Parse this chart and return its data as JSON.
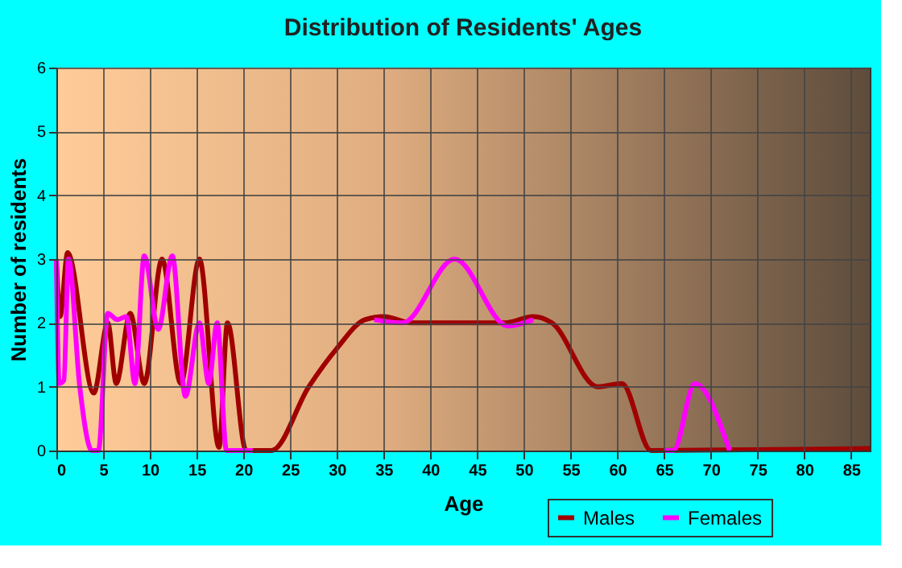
{
  "chart_data": {
    "type": "line",
    "title": "Distribution of Residents' Ages",
    "xlabel": "Age",
    "ylabel": "Number of residents",
    "xlim": [
      0,
      87
    ],
    "xticks": [
      0,
      5,
      10,
      15,
      20,
      25,
      30,
      35,
      40,
      45,
      50,
      55,
      60,
      65,
      70,
      75,
      80,
      85
    ],
    "ylim": [
      0,
      6
    ],
    "yticks": [
      0,
      1,
      2,
      3,
      4,
      5,
      6
    ],
    "grid": true,
    "legend": "bottom right",
    "marker": "none",
    "line_style": "solid",
    "series": [
      {
        "name": "Males",
        "color": "#a00000",
        "x": [
          0,
          0.4,
          1.2,
          4,
          5.5,
          6.4,
          7.9,
          9.4,
          11.3,
          13.3,
          15.3,
          17.4,
          18.3,
          20.3,
          23,
          27,
          30,
          33,
          35,
          38,
          48,
          51,
          53,
          57.9,
          60.5,
          63.6,
          87
        ],
        "values": [
          3,
          2.1,
          3.1,
          0.9,
          2,
          1.05,
          2.15,
          1.05,
          3,
          1.05,
          3,
          0.05,
          2,
          0,
          0,
          1,
          1.6,
          2.05,
          2.1,
          2,
          2,
          2.1,
          2,
          1,
          1.05,
          0,
          0.03
        ]
      },
      {
        "name": "Females",
        "color": "#ff00ff",
        "x": [
          0,
          0.3,
          0.8,
          1.3,
          2.5,
          3.8,
          4.5,
          5.5,
          6.5,
          7.5,
          8.4,
          9.4,
          10.9,
          12.4,
          13.8,
          15.3,
          16.3,
          17.2,
          18.2,
          21,
          22,
          34,
          37,
          42.6,
          48.3,
          51,
          52,
          65,
          66,
          68.3,
          72
        ],
        "values": [
          3,
          1.05,
          1.1,
          3,
          1,
          0,
          0,
          2.15,
          2.05,
          2.1,
          1.05,
          3.05,
          1.9,
          3.05,
          0.85,
          2,
          1.05,
          2,
          0,
          0,
          null,
          2.05,
          2,
          3,
          1.95,
          2.05,
          null,
          0,
          0,
          1.05,
          0
        ]
      }
    ]
  }
}
